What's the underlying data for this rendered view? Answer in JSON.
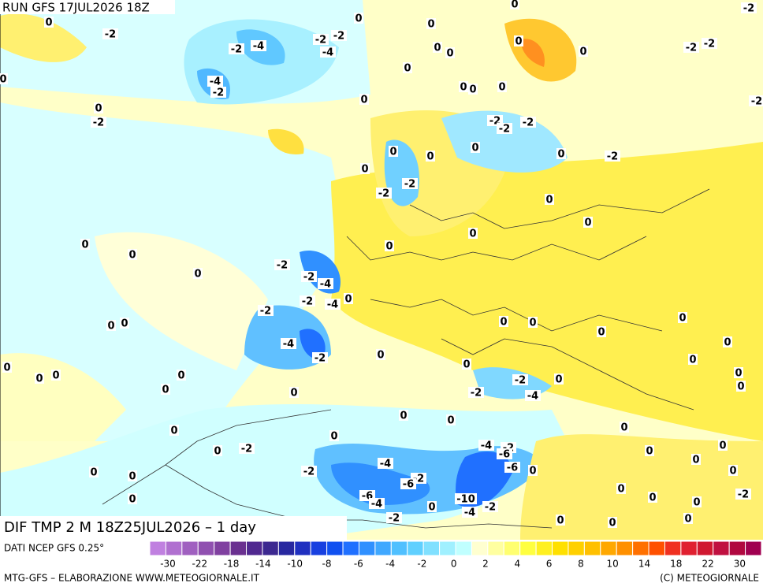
{
  "header": {
    "run": "RUN GFS 17JUL2026 18Z"
  },
  "map": {
    "caption": "DIF TMP 2 M 18Z25JUL2026 – 1 day",
    "labels": [
      -2,
      0,
      0,
      0,
      -2,
      -2,
      -4,
      -2,
      -2,
      -4,
      0,
      0,
      0,
      0,
      -2,
      -2,
      0,
      0,
      -4,
      -2,
      0,
      0,
      0,
      0,
      0,
      -2,
      -2,
      -2,
      -2,
      -2,
      0,
      0,
      -2,
      0,
      0,
      0,
      -2,
      -2,
      0,
      0,
      0,
      0,
      0,
      0,
      -2,
      0,
      -2,
      -4,
      -2,
      -2,
      -4,
      0,
      0,
      0,
      0,
      0,
      0,
      -4,
      0,
      0,
      -2,
      0,
      0,
      0,
      0,
      0,
      0,
      0,
      0,
      0,
      -2,
      0,
      -2,
      -4,
      0,
      0,
      0,
      0,
      0,
      0,
      0,
      0,
      -4,
      -2,
      -6,
      0,
      -2,
      0,
      0,
      0,
      -4,
      -6,
      0,
      0,
      0,
      -2,
      -2,
      -6,
      0,
      -6,
      -4,
      -10,
      -2,
      -4,
      0,
      0,
      0,
      -2,
      0,
      -2,
      0,
      0,
      0,
      0
    ]
  },
  "colorbar": {
    "source": "DATI NCEP GFS 0.25°",
    "colors": [
      "#c080e0",
      "#b070d0",
      "#a060c0",
      "#9050b0",
      "#8040a0",
      "#6a3090",
      "#502890",
      "#3c2890",
      "#2828a0",
      "#2030c0",
      "#1840e0",
      "#1050f0",
      "#2070ff",
      "#3090ff",
      "#40a8ff",
      "#50c0ff",
      "#60d0ff",
      "#80e0ff",
      "#a0f0ff",
      "#c0ffff",
      "#ffffd0",
      "#ffffa0",
      "#ffff70",
      "#ffff40",
      "#fff020",
      "#ffe000",
      "#ffd000",
      "#ffc000",
      "#ffa800",
      "#ff9000",
      "#ff7000",
      "#ff5000",
      "#f03020",
      "#e02030",
      "#d01830",
      "#c01040",
      "#b00840",
      "#a00050"
    ],
    "ticks": [
      -30,
      -22,
      -18,
      -14,
      -10,
      -8,
      -6,
      -4,
      -2,
      0,
      2,
      4,
      6,
      8,
      10,
      14,
      18,
      22,
      30
    ]
  },
  "footer": {
    "left": "MTG-GFS – ELABORAZIONE WWW.METEOGIORNALE.IT",
    "right": "(C) METEOGIORNALE"
  }
}
